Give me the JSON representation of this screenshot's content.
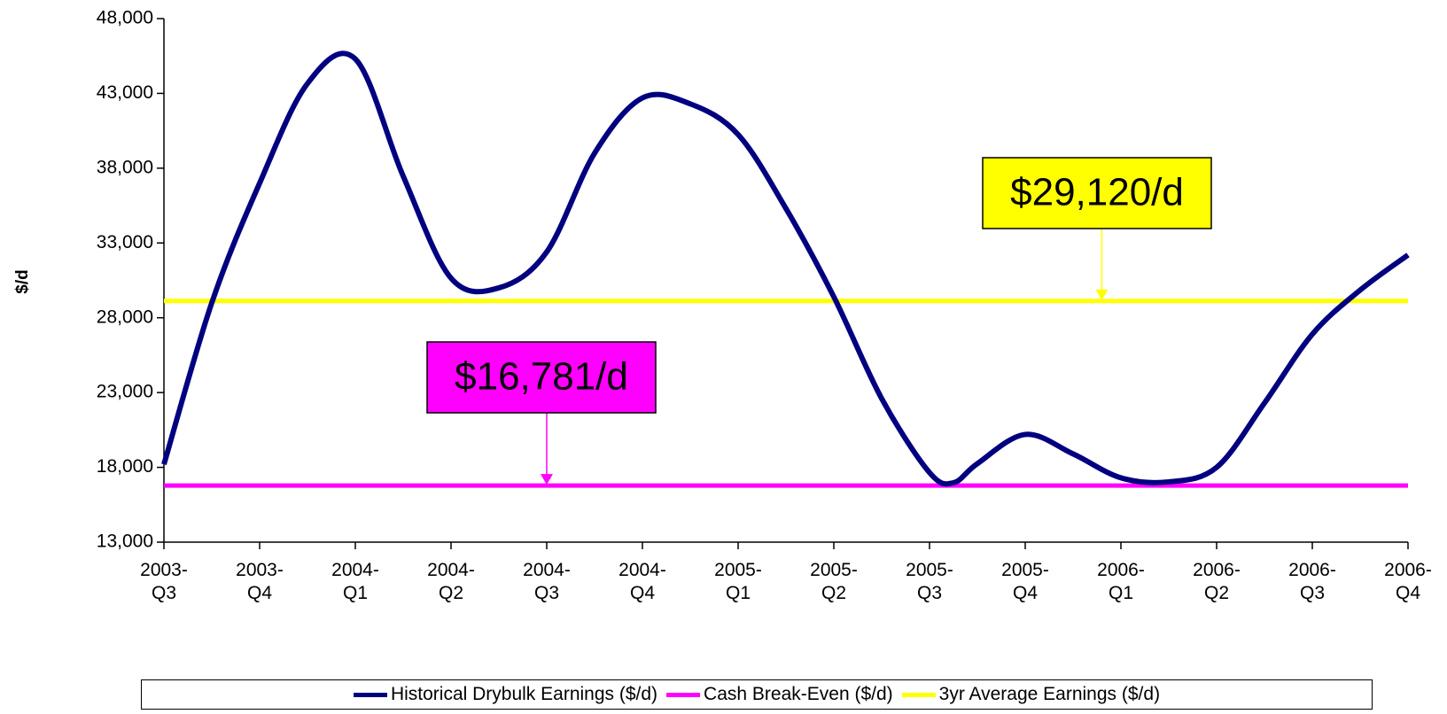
{
  "chart_data": {
    "type": "line",
    "y_label": "$/d",
    "ylim": [
      13000,
      48000
    ],
    "yticks": [
      {
        "value": 13000,
        "label": "13,000"
      },
      {
        "value": 18000,
        "label": "18,000"
      },
      {
        "value": 23000,
        "label": "23,000"
      },
      {
        "value": 28000,
        "label": "28,000"
      },
      {
        "value": 33000,
        "label": "33,000"
      },
      {
        "value": 38000,
        "label": "38,000"
      },
      {
        "value": 43000,
        "label": "43,000"
      },
      {
        "value": 48000,
        "label": "48,000"
      }
    ],
    "xlim": [
      0,
      13
    ],
    "xticks": [
      {
        "value": 0,
        "label": "2003-Q3"
      },
      {
        "value": 1,
        "label": "2003-Q4"
      },
      {
        "value": 2,
        "label": "2004-Q1"
      },
      {
        "value": 3,
        "label": "2004-Q2"
      },
      {
        "value": 4,
        "label": "2004-Q3"
      },
      {
        "value": 5,
        "label": "2004-Q4"
      },
      {
        "value": 6,
        "label": "2005-Q1"
      },
      {
        "value": 7,
        "label": "2005-Q2"
      },
      {
        "value": 8,
        "label": "2005-Q3"
      },
      {
        "value": 9,
        "label": "2005-Q4"
      },
      {
        "value": 10,
        "label": "2006-Q1"
      },
      {
        "value": 11,
        "label": "2006-Q2"
      },
      {
        "value": 12,
        "label": "2006-Q3"
      },
      {
        "value": 13,
        "label": "2006-Q4"
      }
    ],
    "series": [
      {
        "name": "Historical Drybulk Earnings ($/d)",
        "color": "#000080",
        "x": [
          0,
          0.5,
          1,
          1.5,
          2,
          2.5,
          3,
          3.5,
          4,
          4.5,
          5,
          5.5,
          6,
          6.5,
          7,
          7.5,
          8,
          8.25,
          8.5,
          9,
          9.5,
          10,
          10.5,
          11,
          11.5,
          12,
          12.5,
          13
        ],
        "values": [
          18200,
          29000,
          37000,
          43660,
          45300,
          37470,
          30650,
          30000,
          32400,
          39000,
          42700,
          42300,
          40250,
          35300,
          29400,
          22600,
          17650,
          16970,
          18250,
          20200,
          18900,
          17300,
          17030,
          18000,
          22300,
          26900,
          29850,
          32200
        ]
      },
      {
        "name": "Cash Break-Even ($/d)",
        "color": "#ff00ff",
        "x": [
          0,
          13
        ],
        "values": [
          16781,
          16781
        ]
      },
      {
        "name": "3yr Average Earnings ($/d)",
        "color": "#ffff00",
        "x": [
          0,
          13
        ],
        "values": [
          29120,
          29120
        ]
      }
    ],
    "annotations": [
      {
        "text": "$16,781/d",
        "value": 16781,
        "color": "#ff00ff"
      },
      {
        "text": "$29,120/d",
        "value": 29120,
        "color": "#ffff00"
      }
    ]
  }
}
